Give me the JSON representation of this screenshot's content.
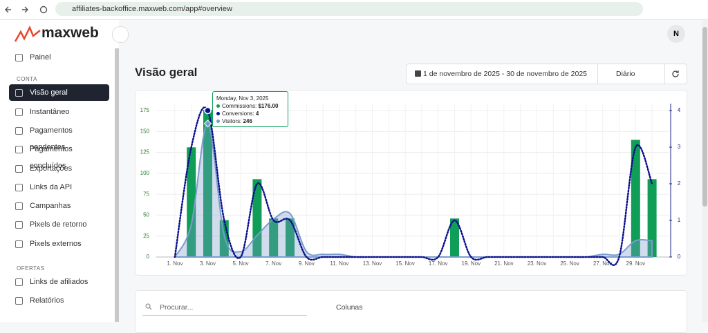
{
  "browser": {
    "url": "affiliates-backoffice.maxweb.com/app#overview"
  },
  "sidebar": {
    "logo": "maxweb",
    "top_item": "Painel",
    "sections": [
      {
        "title": "CONTA",
        "items": [
          "Visão geral",
          "Instantâneo",
          "Pagamentos pendentes",
          "Pagamentos concluídos",
          "Exportações",
          "Links da API",
          "Campanhas",
          "Pixels de retorno",
          "Pixels externos"
        ]
      },
      {
        "title": "OFERTAS",
        "items": [
          "Links de afiliados",
          "Relatórios"
        ]
      }
    ]
  },
  "header": {
    "avatar": "N",
    "title": "Visão geral",
    "date_range": "1 de novembro de 2025 - 30 de novembro de 2025",
    "interval": "Diário"
  },
  "table_toolbar": {
    "search": "Procurar...",
    "columns": "Colunas"
  },
  "tooltip": {
    "title": "Monday, Nov 3, 2025",
    "items": [
      {
        "label": "Commissions:",
        "value": "$176.00"
      },
      {
        "label": "Conversions:",
        "value": "4"
      },
      {
        "label": "Visitors:",
        "value": "246"
      }
    ]
  },
  "chart_data": {
    "type": "combo",
    "categories": [
      "1. Nov",
      null,
      "3. Nov",
      null,
      "5. Nov",
      null,
      "7. Nov",
      null,
      "9. Nov",
      null,
      "11. Nov",
      null,
      "13. Nov",
      null,
      "15. Nov",
      null,
      "17. Nov",
      null,
      "19. Nov",
      null,
      "21. Nov",
      null,
      "23. Nov",
      null,
      "25. Nov",
      null,
      "27. Nov",
      null,
      "29. Nov",
      null
    ],
    "series": [
      {
        "name": "Commissions",
        "kind": "bar",
        "color": "#0f9d58",
        "values": [
          0,
          131,
          176,
          44,
          0,
          93,
          46,
          46,
          0,
          0,
          0,
          0,
          0,
          0,
          0,
          0,
          0,
          46,
          0,
          0,
          0,
          0,
          0,
          0,
          0,
          0,
          0,
          0,
          140,
          93
        ]
      },
      {
        "name": "Visitors",
        "kind": "area",
        "axis": "y3",
        "color": "#7a9ccc",
        "values": [
          0,
          60,
          246,
          40,
          10,
          40,
          70,
          80,
          10,
          5,
          5,
          0,
          0,
          0,
          0,
          0,
          0,
          0,
          0,
          0,
          0,
          0,
          0,
          0,
          0,
          0,
          5,
          5,
          30,
          30
        ]
      },
      {
        "name": "Conversions",
        "kind": "dotted",
        "axis": "y2",
        "color": "#0a0f8c",
        "values": [
          0,
          3,
          4,
          1,
          0,
          2,
          1,
          1,
          0,
          0,
          0,
          0,
          0,
          0,
          0,
          0,
          0,
          1,
          0,
          0,
          0,
          0,
          0,
          0,
          0,
          0,
          0,
          0,
          3,
          2
        ]
      }
    ],
    "ylim": [
      0,
      175
    ],
    "yticks": [
      0,
      25,
      50,
      75,
      100,
      125,
      150,
      175
    ],
    "y2lim": [
      0,
      4
    ],
    "y2ticks": [
      0,
      1,
      2,
      3,
      4
    ],
    "y3lim": [
      0,
      270
    ],
    "grid": true,
    "highlight_index": 2
  }
}
